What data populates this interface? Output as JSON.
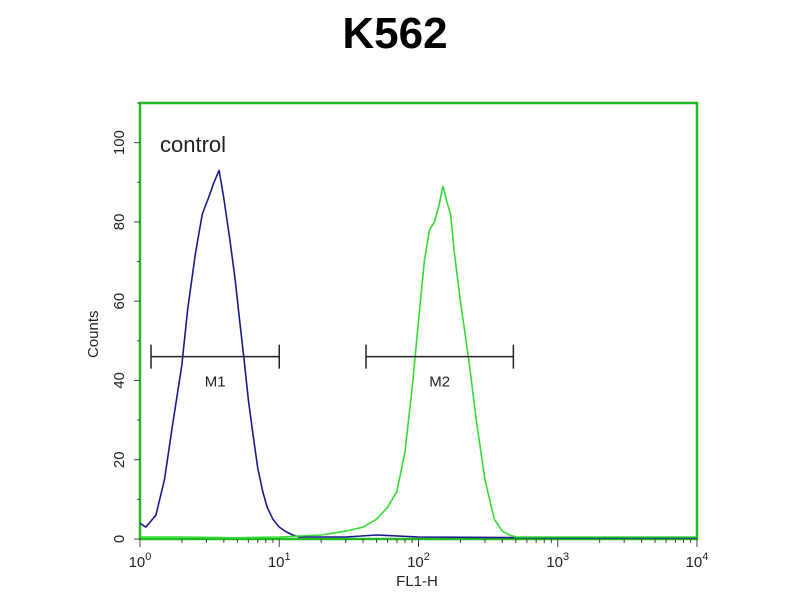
{
  "chart_data": {
    "type": "line",
    "title": "K562",
    "xlabel": "FL1-H",
    "ylabel": "Counts",
    "x_scale": "log",
    "xlim": [
      1,
      10000
    ],
    "ylim": [
      0,
      110
    ],
    "x_ticks": [
      {
        "base": "10",
        "exp": "0",
        "value": 1
      },
      {
        "base": "10",
        "exp": "1",
        "value": 10
      },
      {
        "base": "10",
        "exp": "2",
        "value": 100
      },
      {
        "base": "10",
        "exp": "3",
        "value": 1000
      },
      {
        "base": "10",
        "exp": "4",
        "value": 10000
      }
    ],
    "y_ticks": [
      "0",
      "20",
      "40",
      "60",
      "80",
      "100"
    ],
    "annotation": "control",
    "axis_color": "#22bb22",
    "grid": false,
    "series": [
      {
        "color": "#1a1a8c",
        "x": [
          1,
          1.1,
          1.3,
          1.5,
          1.7,
          2.0,
          2.2,
          2.5,
          2.8,
          3.1,
          3.4,
          3.7,
          4.0,
          4.4,
          4.8,
          5.2,
          5.6,
          6.0,
          6.5,
          7.0,
          7.6,
          8.2,
          9.0,
          10.0,
          11.0,
          12.5,
          14,
          20,
          30,
          50,
          100,
          1000,
          10000
        ],
        "y": [
          4,
          3,
          6,
          15,
          28,
          44,
          58,
          72,
          82,
          86,
          90,
          93,
          86,
          76,
          66,
          55,
          45,
          35,
          26,
          18,
          12,
          8,
          5,
          3,
          2,
          1,
          0.5,
          0.5,
          0.5,
          1,
          0.5,
          0.3,
          0.3
        ]
      },
      {
        "color": "#33dd33",
        "x": [
          1,
          2,
          5,
          10,
          20,
          30,
          40,
          50,
          60,
          70,
          80,
          90,
          100,
          110,
          120,
          130,
          140,
          150,
          160,
          170,
          180,
          200,
          230,
          260,
          300,
          350,
          400,
          450,
          500,
          1000,
          10000
        ],
        "y": [
          0.5,
          0.5,
          0.3,
          0.5,
          1,
          2,
          3,
          5,
          8,
          12,
          22,
          38,
          55,
          70,
          78,
          80,
          84,
          89,
          85,
          82,
          73,
          60,
          45,
          30,
          15,
          5,
          2,
          1,
          0.5,
          0.5,
          0.5
        ]
      }
    ],
    "markers": [
      {
        "label": "M1",
        "x_start": 1.2,
        "x_end": 10,
        "y": 46
      },
      {
        "label": "M2",
        "x_start": 42,
        "x_end": 480,
        "y": 46
      }
    ]
  }
}
